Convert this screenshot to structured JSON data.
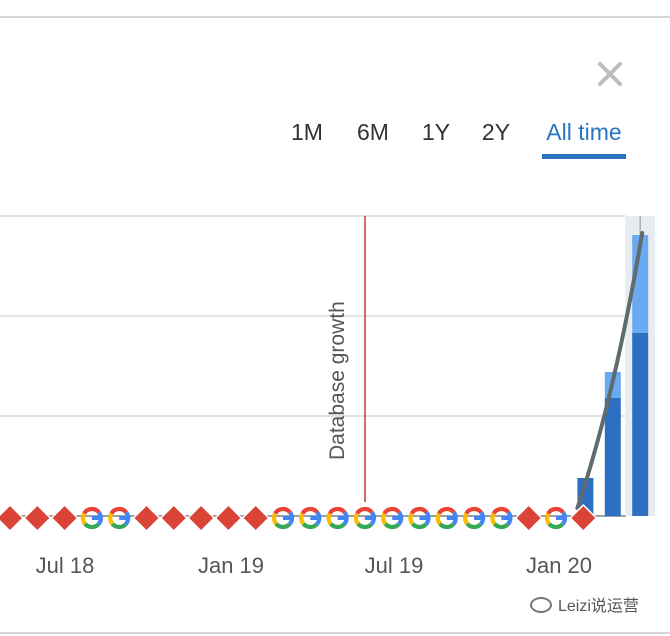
{
  "tabs": [
    {
      "label": "1M",
      "active": false
    },
    {
      "label": "6M",
      "active": false
    },
    {
      "label": "1Y",
      "active": false
    },
    {
      "label": "2Y",
      "active": false
    },
    {
      "label": "All time",
      "active": true
    }
  ],
  "watermark": {
    "text": "Leizi说运营"
  },
  "chart_data": {
    "type": "bar",
    "x_tick_labels": [
      "Jul 18",
      "Jan 19",
      "Jul 19",
      "Jan 20"
    ],
    "annotation": {
      "label": "Database growth",
      "color": "#c23b3b"
    },
    "colors": {
      "bar_dark": "#2d6fc0",
      "bar_light": "#6aaaf0",
      "trend": "#5f6b6e",
      "highlight": "#e9ecee",
      "marker_red": "#d94437"
    },
    "series": [
      {
        "values": [
          0,
          0,
          0,
          0,
          0,
          0,
          0,
          0,
          0,
          0,
          0,
          0,
          0,
          0,
          0,
          0,
          0,
          0,
          0,
          0,
          0,
          0.38,
          1.18,
          1.83
        ]
      },
      {
        "values": [
          0,
          0,
          0,
          0,
          0,
          0,
          0,
          0,
          0,
          0,
          0,
          0,
          0,
          0,
          0,
          0,
          0,
          0,
          0,
          0,
          0,
          0,
          0.26,
          0.98
        ]
      }
    ],
    "markers": [
      "diamond",
      "diamond",
      "diamond",
      "google",
      "google",
      "diamond",
      "diamond",
      "diamond",
      "diamond",
      "diamond",
      "google",
      "google",
      "google",
      "google",
      "google",
      "google",
      "google",
      "google",
      "google",
      "diamond",
      "google",
      "diamond"
    ],
    "ylim": [
      0,
      3
    ],
    "trend_line": true,
    "grid": true
  }
}
